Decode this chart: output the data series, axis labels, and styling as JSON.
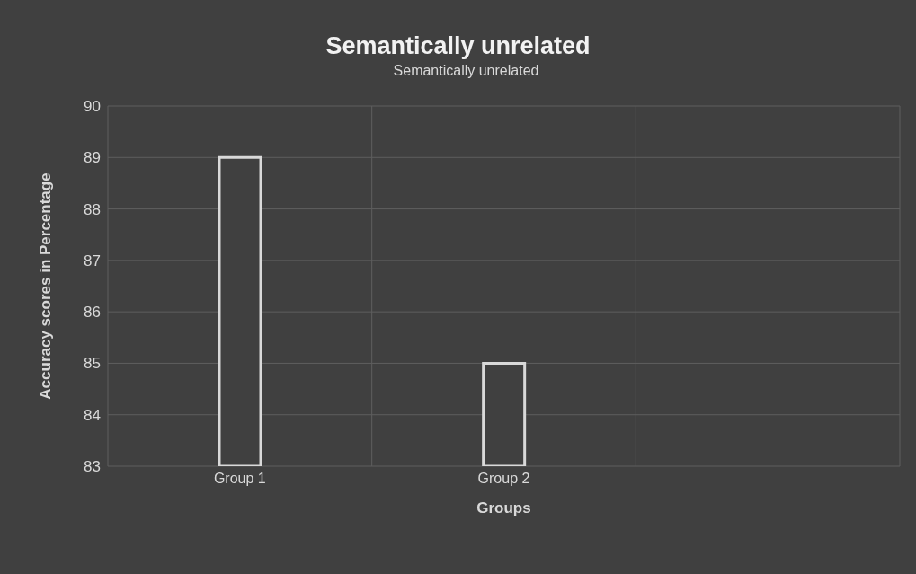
{
  "chart_data": {
    "type": "bar",
    "title": "Semantically unrelated",
    "xlabel": "Groups",
    "ylabel": "Accuracy scores in Percentage",
    "categories": [
      "Group 1",
      "Group 2",
      null
    ],
    "series": [
      {
        "name": "Semantically unrelated",
        "color": "#d9d9d9",
        "values": [
          89,
          85,
          null
        ]
      }
    ],
    "ylim": [
      83,
      90
    ],
    "yticks": [
      83,
      84,
      85,
      86,
      87,
      88,
      89,
      90
    ],
    "grid": true,
    "legend": "top"
  }
}
